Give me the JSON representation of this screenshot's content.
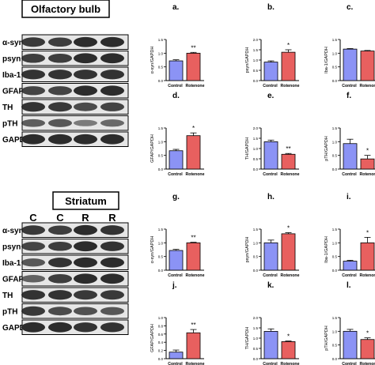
{
  "colors": {
    "control_fill": "#8b93f5",
    "rotenone_fill": "#e8605f",
    "axis": "#000000",
    "blot_bg": "#e6e6e6",
    "band": "#1c1c1c"
  },
  "blots": [
    {
      "title": "Olfactory bulb",
      "lane_labels": [],
      "rows": [
        "α-syn",
        "psyn",
        "Iba-1",
        "GFAP",
        "TH",
        "pTH",
        "GAPDH"
      ]
    },
    {
      "title": "Striatum",
      "lane_labels": [
        "C",
        "C",
        "R",
        "R"
      ],
      "rows": [
        "α-syn",
        "psyn",
        "Iba-1",
        "GFAP",
        "TH",
        "pTH",
        "GAPDH"
      ]
    }
  ],
  "chart_data": [
    {
      "panel": "a.",
      "type": "bar",
      "ylabel": "α-syn/GAPDH",
      "categories": [
        "Control",
        "Rotenone"
      ],
      "values": [
        0.72,
        1.0
      ],
      "errors": [
        0.04,
        0.03
      ],
      "ylim": [
        0,
        1.5
      ],
      "yticks": [
        "0.0",
        "0.5",
        "1.0",
        "1.5"
      ],
      "significance": "**"
    },
    {
      "panel": "b.",
      "type": "bar",
      "ylabel": "psyn/GAPDH",
      "categories": [
        "Control",
        "Rotenone"
      ],
      "values": [
        0.9,
        1.38
      ],
      "errors": [
        0.06,
        0.12
      ],
      "ylim": [
        0,
        2.0
      ],
      "yticks": [
        "0.0",
        "0.5",
        "1.0",
        "1.5",
        "2.0"
      ],
      "significance": "*"
    },
    {
      "panel": "c.",
      "type": "bar",
      "ylabel": "Iba-1/GAPDH",
      "categories": [
        "Control",
        "Rotenone"
      ],
      "values": [
        1.15,
        1.08
      ],
      "errors": [
        0.02,
        0.02
      ],
      "ylim": [
        0,
        1.5
      ],
      "yticks": [
        "0.0",
        "0.5",
        "1.0",
        "1.5"
      ],
      "significance": ""
    },
    {
      "panel": "d.",
      "type": "bar",
      "ylabel": "GFAP/GAPDH",
      "categories": [
        "Control",
        "Rotenone"
      ],
      "values": [
        0.67,
        1.22
      ],
      "errors": [
        0.05,
        0.1
      ],
      "ylim": [
        0,
        1.5
      ],
      "yticks": [
        "0.0",
        "0.5",
        "1.0",
        "1.5"
      ],
      "significance": "*"
    },
    {
      "panel": "e.",
      "type": "bar",
      "ylabel": "TH/GAPDH",
      "categories": [
        "Control",
        "Rotenone"
      ],
      "values": [
        1.33,
        0.72
      ],
      "errors": [
        0.08,
        0.04
      ],
      "ylim": [
        0,
        2.0
      ],
      "yticks": [
        "0.0",
        "0.5",
        "1.0",
        "1.5",
        "2.0"
      ],
      "significance": "**"
    },
    {
      "panel": "f.",
      "type": "bar",
      "ylabel": "pTH/GAPDH",
      "categories": [
        "Control",
        "Rotenone"
      ],
      "values": [
        0.93,
        0.37
      ],
      "errors": [
        0.16,
        0.13
      ],
      "ylim": [
        0,
        1.5
      ],
      "yticks": [
        "0.0",
        "0.5",
        "1.0",
        "1.5"
      ],
      "significance": "*"
    },
    {
      "panel": "g.",
      "type": "bar",
      "ylabel": "α-syn/GAPDH",
      "categories": [
        "Control",
        "Rotenone"
      ],
      "values": [
        0.72,
        1.0
      ],
      "errors": [
        0.04,
        0.02
      ],
      "ylim": [
        0,
        1.5
      ],
      "yticks": [
        "0.0",
        "0.5",
        "1.0",
        "1.5"
      ],
      "significance": "**"
    },
    {
      "panel": "h.",
      "type": "bar",
      "ylabel": "psyn/GAPDH",
      "categories": [
        "Control",
        "Rotenone"
      ],
      "values": [
        1.0,
        1.33
      ],
      "errors": [
        0.1,
        0.04
      ],
      "ylim": [
        0,
        1.5
      ],
      "yticks": [
        "0.0",
        "0.5",
        "1.0",
        "1.5"
      ],
      "significance": "*"
    },
    {
      "panel": "i.",
      "type": "bar",
      "ylabel": "Iba-1/GAPDH",
      "categories": [
        "Control",
        "Rotenone"
      ],
      "values": [
        0.33,
        1.0
      ],
      "errors": [
        0.03,
        0.2
      ],
      "ylim": [
        0,
        1.5
      ],
      "yticks": [
        "0.0",
        "0.5",
        "1.0",
        "1.5"
      ],
      "significance": "*"
    },
    {
      "panel": "j.",
      "type": "bar",
      "ylabel": "GFAP/GAPDH",
      "categories": [
        "Control",
        "Rotenone"
      ],
      "values": [
        0.16,
        0.63
      ],
      "errors": [
        0.05,
        0.08
      ],
      "ylim": [
        0,
        1.0
      ],
      "yticks": [
        "0.0",
        "0.2",
        "0.4",
        "0.6",
        "0.8",
        "1.0"
      ],
      "significance": "**"
    },
    {
      "panel": "k.",
      "type": "bar",
      "ylabel": "TH/GAPDH",
      "categories": [
        "Control",
        "Rotenone"
      ],
      "values": [
        1.33,
        0.83
      ],
      "errors": [
        0.12,
        0.03
      ],
      "ylim": [
        0,
        2.0
      ],
      "yticks": [
        "0.0",
        "0.5",
        "1.0",
        "1.5",
        "2.0"
      ],
      "significance": "*"
    },
    {
      "panel": "l.",
      "type": "bar",
      "ylabel": "pTH/GAPDH",
      "categories": [
        "Control",
        "Rotenone"
      ],
      "values": [
        1.0,
        0.7
      ],
      "errors": [
        0.07,
        0.06
      ],
      "ylim": [
        0,
        1.5
      ],
      "yticks": [
        "0.0",
        "0.5",
        "1.0",
        "1.5"
      ],
      "significance": "*"
    }
  ]
}
